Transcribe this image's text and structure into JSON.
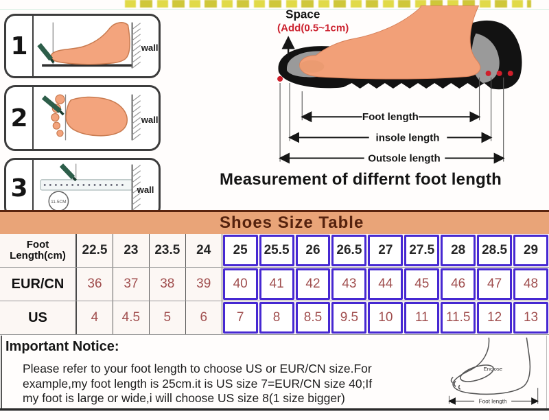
{
  "steps": {
    "items": [
      {
        "number": "1",
        "wall": "wall"
      },
      {
        "number": "2",
        "wall": "wall"
      },
      {
        "number": "3",
        "wall": "wall",
        "ruler_circle": "11.5CM"
      }
    ]
  },
  "measure_diagram": {
    "space": "Space",
    "space_add": "(Add(0.5~1cm)",
    "foot_length": "Foot length",
    "insole_length": "insole length",
    "outsole_length": "Outsole length",
    "caption": "Measurement of differnt foot length"
  },
  "size_table": {
    "title": "Shoes  Size  Table",
    "row_headers": [
      "Foot Length(cm)",
      "EUR/CN",
      "US"
    ],
    "rows": [
      [
        "22.5",
        "23",
        "23.5",
        "24",
        "25",
        "25.5",
        "26",
        "26.5",
        "27",
        "27.5",
        "28",
        "28.5",
        "29"
      ],
      [
        "36",
        "37",
        "38",
        "39",
        "40",
        "41",
        "42",
        "43",
        "44",
        "45",
        "46",
        "47",
        "48"
      ],
      [
        "4",
        "4.5",
        "5",
        "6",
        "7",
        "8",
        "8.5",
        "9.5",
        "10",
        "11",
        "11.5",
        "12",
        "13"
      ]
    ],
    "highlight_from_index": 4,
    "colors": {
      "band_bg": "#e9a478",
      "band_text": "#55220e",
      "value_text": "#a04e4e",
      "foot_row_text": "#262626",
      "highlight_border": "#4628d2"
    }
  },
  "notice": {
    "title": "Important Notice:",
    "line1": "Please refer to your foot length to choose US or EUR/CN size.For",
    "line2": "example,my foot length is 25cm.it is US size 7=EUR/CN size 40;If",
    "line3": "my foot is large or wide,i will choose US size 8(1 size bigger)",
    "foot_sketch": {
      "enclose": "Enclose",
      "foot_length": "Foot length"
    }
  }
}
